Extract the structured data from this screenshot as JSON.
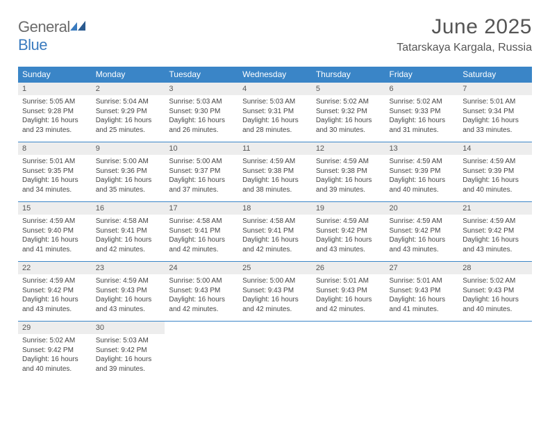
{
  "logo": {
    "part1": "General",
    "part2": "Blue"
  },
  "title": "June 2025",
  "location": "Tatarskaya Kargala, Russia",
  "colors": {
    "header_bg": "#3a85c7",
    "header_text": "#ffffff",
    "date_bg": "#ededed",
    "text": "#444444",
    "logo_gray": "#6b6b6b",
    "logo_blue": "#3a7bbf",
    "title_color": "#555555"
  },
  "weekdays": [
    "Sunday",
    "Monday",
    "Tuesday",
    "Wednesday",
    "Thursday",
    "Friday",
    "Saturday"
  ],
  "weeks": [
    [
      {
        "date": "1",
        "sunrise": "5:05 AM",
        "sunset": "9:28 PM",
        "daylight": "16 hours and 23 minutes."
      },
      {
        "date": "2",
        "sunrise": "5:04 AM",
        "sunset": "9:29 PM",
        "daylight": "16 hours and 25 minutes."
      },
      {
        "date": "3",
        "sunrise": "5:03 AM",
        "sunset": "9:30 PM",
        "daylight": "16 hours and 26 minutes."
      },
      {
        "date": "4",
        "sunrise": "5:03 AM",
        "sunset": "9:31 PM",
        "daylight": "16 hours and 28 minutes."
      },
      {
        "date": "5",
        "sunrise": "5:02 AM",
        "sunset": "9:32 PM",
        "daylight": "16 hours and 30 minutes."
      },
      {
        "date": "6",
        "sunrise": "5:02 AM",
        "sunset": "9:33 PM",
        "daylight": "16 hours and 31 minutes."
      },
      {
        "date": "7",
        "sunrise": "5:01 AM",
        "sunset": "9:34 PM",
        "daylight": "16 hours and 33 minutes."
      }
    ],
    [
      {
        "date": "8",
        "sunrise": "5:01 AM",
        "sunset": "9:35 PM",
        "daylight": "16 hours and 34 minutes."
      },
      {
        "date": "9",
        "sunrise": "5:00 AM",
        "sunset": "9:36 PM",
        "daylight": "16 hours and 35 minutes."
      },
      {
        "date": "10",
        "sunrise": "5:00 AM",
        "sunset": "9:37 PM",
        "daylight": "16 hours and 37 minutes."
      },
      {
        "date": "11",
        "sunrise": "4:59 AM",
        "sunset": "9:38 PM",
        "daylight": "16 hours and 38 minutes."
      },
      {
        "date": "12",
        "sunrise": "4:59 AM",
        "sunset": "9:38 PM",
        "daylight": "16 hours and 39 minutes."
      },
      {
        "date": "13",
        "sunrise": "4:59 AM",
        "sunset": "9:39 PM",
        "daylight": "16 hours and 40 minutes."
      },
      {
        "date": "14",
        "sunrise": "4:59 AM",
        "sunset": "9:39 PM",
        "daylight": "16 hours and 40 minutes."
      }
    ],
    [
      {
        "date": "15",
        "sunrise": "4:59 AM",
        "sunset": "9:40 PM",
        "daylight": "16 hours and 41 minutes."
      },
      {
        "date": "16",
        "sunrise": "4:58 AM",
        "sunset": "9:41 PM",
        "daylight": "16 hours and 42 minutes."
      },
      {
        "date": "17",
        "sunrise": "4:58 AM",
        "sunset": "9:41 PM",
        "daylight": "16 hours and 42 minutes."
      },
      {
        "date": "18",
        "sunrise": "4:58 AM",
        "sunset": "9:41 PM",
        "daylight": "16 hours and 42 minutes."
      },
      {
        "date": "19",
        "sunrise": "4:59 AM",
        "sunset": "9:42 PM",
        "daylight": "16 hours and 43 minutes."
      },
      {
        "date": "20",
        "sunrise": "4:59 AM",
        "sunset": "9:42 PM",
        "daylight": "16 hours and 43 minutes."
      },
      {
        "date": "21",
        "sunrise": "4:59 AM",
        "sunset": "9:42 PM",
        "daylight": "16 hours and 43 minutes."
      }
    ],
    [
      {
        "date": "22",
        "sunrise": "4:59 AM",
        "sunset": "9:42 PM",
        "daylight": "16 hours and 43 minutes."
      },
      {
        "date": "23",
        "sunrise": "4:59 AM",
        "sunset": "9:43 PM",
        "daylight": "16 hours and 43 minutes."
      },
      {
        "date": "24",
        "sunrise": "5:00 AM",
        "sunset": "9:43 PM",
        "daylight": "16 hours and 42 minutes."
      },
      {
        "date": "25",
        "sunrise": "5:00 AM",
        "sunset": "9:43 PM",
        "daylight": "16 hours and 42 minutes."
      },
      {
        "date": "26",
        "sunrise": "5:01 AM",
        "sunset": "9:43 PM",
        "daylight": "16 hours and 42 minutes."
      },
      {
        "date": "27",
        "sunrise": "5:01 AM",
        "sunset": "9:43 PM",
        "daylight": "16 hours and 41 minutes."
      },
      {
        "date": "28",
        "sunrise": "5:02 AM",
        "sunset": "9:43 PM",
        "daylight": "16 hours and 40 minutes."
      }
    ],
    [
      {
        "date": "29",
        "sunrise": "5:02 AM",
        "sunset": "9:42 PM",
        "daylight": "16 hours and 40 minutes."
      },
      {
        "date": "30",
        "sunrise": "5:03 AM",
        "sunset": "9:42 PM",
        "daylight": "16 hours and 39 minutes."
      },
      null,
      null,
      null,
      null,
      null
    ]
  ],
  "labels": {
    "sunrise": "Sunrise: ",
    "sunset": "Sunset: ",
    "daylight": "Daylight: "
  }
}
